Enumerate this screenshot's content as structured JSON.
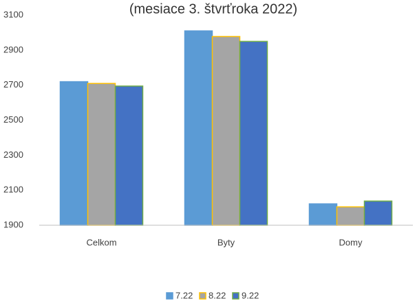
{
  "chart_data": {
    "type": "bar",
    "title": "(mesiace 3. štvrťroka 2022)",
    "categories": [
      "Celkom",
      "Byty",
      "Domy"
    ],
    "series": [
      {
        "name": "7.22",
        "color": "#5b9bd5",
        "edgecolor": "#5b9bd5",
        "values": [
          2720,
          3010,
          2022
        ]
      },
      {
        "name": "8.22",
        "color": "#a5a5a5",
        "edgecolor": "#ffc000",
        "values": [
          2710,
          2978,
          2005
        ]
      },
      {
        "name": "9.22",
        "color": "#4472c4",
        "edgecolor": "#70ad47",
        "values": [
          2695,
          2950,
          2038
        ]
      }
    ],
    "ylim": [
      1900,
      3100
    ],
    "yticks": [
      1900,
      2100,
      2300,
      2500,
      2700,
      2900,
      3100
    ],
    "grid": false,
    "legend": "bottom"
  }
}
